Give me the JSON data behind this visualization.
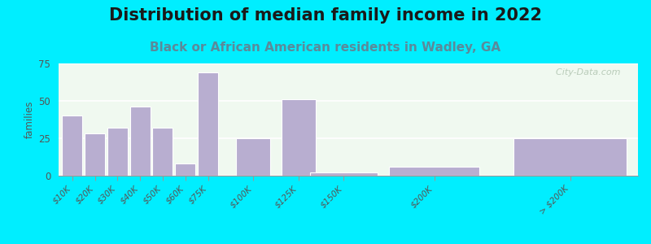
{
  "title": "Distribution of median family income in 2022",
  "subtitle": "Black or African American residents in Wadley, GA",
  "categories": [
    "$10K",
    "$20K",
    "$30K",
    "$40K",
    "$50K",
    "$60K",
    "$75K",
    "$100K",
    "$125K",
    "$150K",
    "$200K",
    "> $200K"
  ],
  "values": [
    40,
    28,
    32,
    46,
    32,
    8,
    69,
    25,
    51,
    2,
    6,
    25
  ],
  "bar_color": "#b8aed0",
  "bar_edge_color": "#ffffff",
  "outer_background": "#00eeff",
  "plot_bg_left": "#e8f5e0",
  "plot_bg_right": "#f8fdf8",
  "ylabel": "families",
  "ylim": [
    0,
    75
  ],
  "yticks": [
    0,
    25,
    50,
    75
  ],
  "title_fontsize": 15,
  "subtitle_fontsize": 11,
  "watermark": "  City-Data.com"
}
